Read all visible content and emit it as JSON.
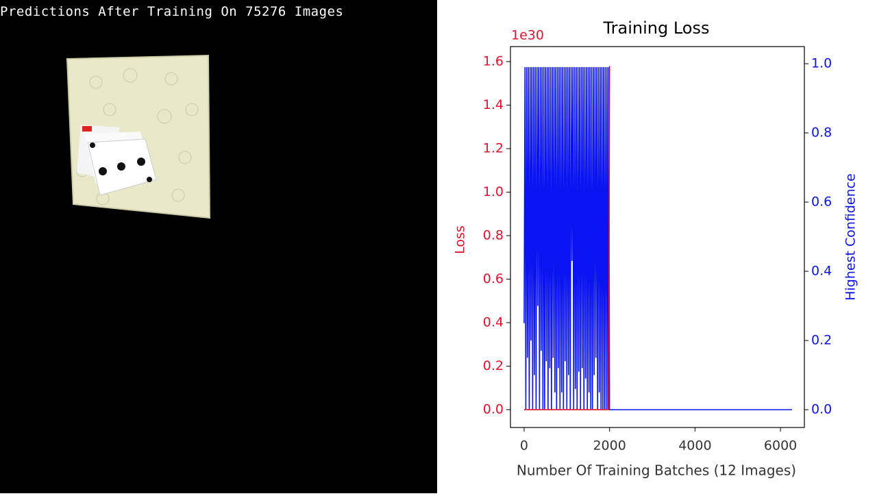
{
  "header": {
    "title": "Predictions After Training On 75276 Images"
  },
  "chart_data": {
    "type": "line",
    "title": "Training Loss",
    "xlabel": "Number Of Training Batches (12 Images)",
    "ylabel": "Loss",
    "y2label": "Highest Confidence",
    "y_offset_label": "1e30",
    "xlim": [
      -320,
      6560
    ],
    "xticks": [
      0,
      2000,
      4000,
      6000
    ],
    "ylim": [
      -0.082,
      1.669
    ],
    "yticks": [
      {
        "value": 0,
        "label": "0.0"
      },
      {
        "value": 0.2,
        "label": "0.2"
      },
      {
        "value": 0.4,
        "label": "0.4"
      },
      {
        "value": 0.6,
        "label": "0.6"
      },
      {
        "value": 0.8,
        "label": "0.8"
      },
      {
        "value": 1,
        "label": "1.0"
      },
      {
        "value": 1.2,
        "label": "1.2"
      },
      {
        "value": 1.4,
        "label": "1.4"
      },
      {
        "value": 1.6,
        "label": "1.6"
      }
    ],
    "y2lim": [
      -0.0515,
      1.0495
    ],
    "y2ticks": [
      {
        "value": 0,
        "label": "0.0"
      },
      {
        "value": 0.2,
        "label": "0.2"
      },
      {
        "value": 0.4,
        "label": "0.4"
      },
      {
        "value": 0.6,
        "label": "0.6"
      },
      {
        "value": 0.8,
        "label": "0.8"
      },
      {
        "value": 1,
        "label": "1.0"
      }
    ],
    "series": [
      {
        "name": "Loss",
        "color": "#e8112d",
        "axis": "y",
        "x": [
          0,
          1980,
          2000
        ],
        "values": [
          0,
          0,
          1.58
        ]
      },
      {
        "name": "Highest Confidence",
        "color": "#0a14f0",
        "axis": "y2",
        "x": [
          0,
          20,
          40,
          60,
          80,
          100,
          120,
          140,
          160,
          180,
          200,
          220,
          240,
          260,
          280,
          300,
          320,
          340,
          360,
          380,
          400,
          420,
          440,
          460,
          480,
          500,
          520,
          540,
          560,
          580,
          600,
          620,
          640,
          660,
          680,
          700,
          720,
          740,
          760,
          780,
          800,
          820,
          840,
          860,
          880,
          900,
          920,
          940,
          960,
          980,
          1000,
          1020,
          1040,
          1060,
          1080,
          1100,
          1120,
          1140,
          1160,
          1180,
          1200,
          1220,
          1240,
          1260,
          1280,
          1300,
          1320,
          1340,
          1360,
          1380,
          1400,
          1420,
          1440,
          1460,
          1480,
          1500,
          1520,
          1540,
          1560,
          1580,
          1600,
          1620,
          1640,
          1660,
          1680,
          1700,
          1720,
          1740,
          1760,
          1780,
          1800,
          1820,
          1840,
          1860,
          1880,
          1900,
          1920,
          1940,
          1960,
          1980,
          2000,
          6270
        ],
        "values": [
          0.25,
          0.99,
          0,
          0.99,
          0.15,
          0.99,
          0,
          0.99,
          0.2,
          0.99,
          0,
          0.99,
          0.1,
          0.99,
          0,
          0.99,
          0.3,
          0.99,
          0,
          0.99,
          0.17,
          0.99,
          0,
          0.99,
          0,
          0.99,
          0.14,
          0.99,
          0,
          0.99,
          0.12,
          0.99,
          0,
          0.99,
          0.15,
          0.99,
          0.05,
          0.99,
          0,
          0.99,
          0.12,
          0.99,
          0,
          0.99,
          0.05,
          0.99,
          0,
          0.99,
          0.14,
          0.99,
          0,
          0.99,
          0.1,
          0.99,
          0,
          0.99,
          0.43,
          0.99,
          0,
          0.99,
          0.06,
          0.99,
          0,
          0.99,
          0.11,
          0.99,
          0,
          0.99,
          0.12,
          0.99,
          0,
          0.99,
          0.09,
          0.99,
          0,
          0.99,
          0.05,
          0.99,
          0,
          0.99,
          0,
          0.99,
          0.1,
          0.99,
          0.15,
          0.99,
          0,
          0.99,
          0.05,
          0.99,
          0,
          0.99,
          0,
          0.99,
          0,
          0.99,
          0,
          0.99,
          0,
          0.99,
          0,
          0
        ]
      }
    ]
  }
}
